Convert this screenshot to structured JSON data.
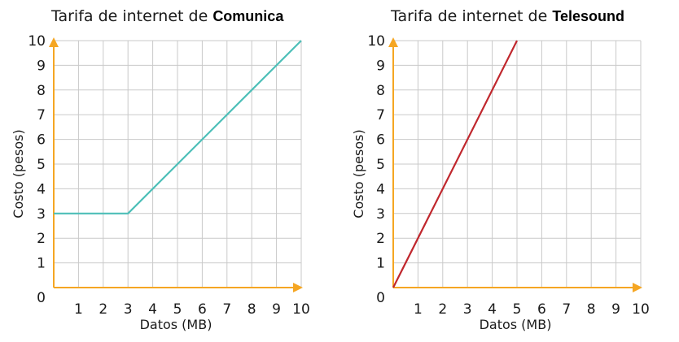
{
  "chart_data": [
    {
      "type": "line",
      "title_prefix": "Tarifa de internet de ",
      "title_name": "Comunica",
      "xlabel": "Datos (MB)",
      "ylabel": "Costo (pesos)",
      "xlim": [
        0,
        10
      ],
      "ylim": [
        0,
        10
      ],
      "x_ticks": [
        1,
        2,
        3,
        4,
        5,
        6,
        7,
        8,
        9,
        10
      ],
      "y_ticks": [
        1,
        2,
        3,
        4,
        5,
        6,
        7,
        8,
        9,
        10
      ],
      "origin_label": "0",
      "grid": true,
      "series": [
        {
          "color": "#4dbfb8",
          "x": [
            0,
            3,
            10
          ],
          "y": [
            3,
            3,
            10
          ]
        }
      ]
    },
    {
      "type": "line",
      "title_prefix": "Tarifa de internet de ",
      "title_name": "Telesound",
      "xlabel": "Datos (MB)",
      "ylabel": "Costo (pesos)",
      "xlim": [
        0,
        10
      ],
      "ylim": [
        0,
        10
      ],
      "x_ticks": [
        1,
        2,
        3,
        4,
        5,
        6,
        7,
        8,
        9,
        10
      ],
      "y_ticks": [
        1,
        2,
        3,
        4,
        5,
        6,
        7,
        8,
        9,
        10
      ],
      "origin_label": "0",
      "grid": true,
      "series": [
        {
          "color": "#c0272d",
          "x": [
            0,
            5
          ],
          "y": [
            0,
            10
          ]
        }
      ]
    }
  ]
}
